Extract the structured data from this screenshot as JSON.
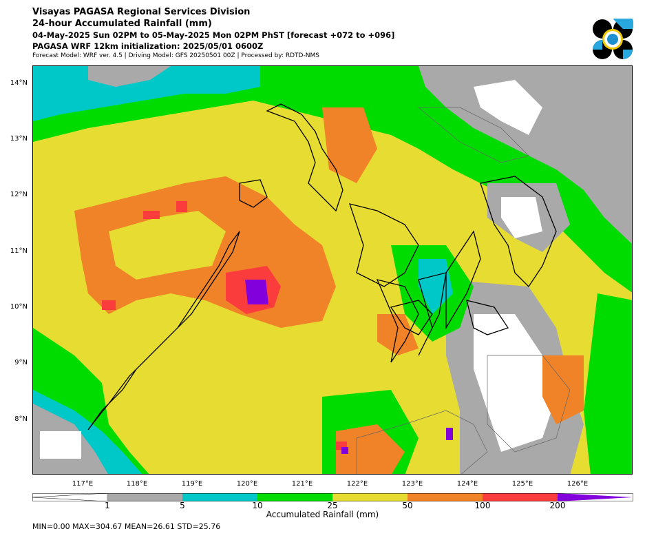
{
  "header": {
    "title1": "Visayas PAGASA Regional Services Division",
    "title2": "24-hour Accumulated Rainfall (mm)",
    "title3": "04-May-2025 Sun 02PM to 05-May-2025 Mon 02PM PhST [forecast +072 to +096]",
    "title4": "PAGASA WRF 12km initialization: 2025/05/01 0600Z",
    "title5": "Forecast Model: WRF ver. 4.5 | Driving Model: GFS 20250501 00Z | Processed by: RDTD-NMS"
  },
  "map": {
    "lat_labels": [
      "14°N",
      "13°N",
      "12°N",
      "11°N",
      "10°N",
      "9°N",
      "8°N"
    ],
    "lon_labels": [
      "117°E",
      "118°E",
      "119°E",
      "120°E",
      "121°E",
      "122°E",
      "123°E",
      "124°E",
      "125°E",
      "126°E"
    ],
    "colors": {
      "white": "#ffffff",
      "gray": "#a9a9a9",
      "cyan": "#00c8c8",
      "green": "#00dc00",
      "yellow": "#e6dc32",
      "orange": "#f08228",
      "red": "#fa3c3c",
      "purple": "#8200dc"
    }
  },
  "colorbar": {
    "ticks": [
      "1",
      "5",
      "10",
      "25",
      "50",
      "100",
      "200"
    ],
    "label": "Accumulated Rainfall (mm)",
    "segments": [
      "#ffffff",
      "#a9a9a9",
      "#00c8c8",
      "#00dc00",
      "#e6dc32",
      "#f08228",
      "#fa3c3c",
      "#8200dc"
    ]
  },
  "stats": "MIN=0.00   MAX=304.67   MEAN=26.61   STD=25.76"
}
